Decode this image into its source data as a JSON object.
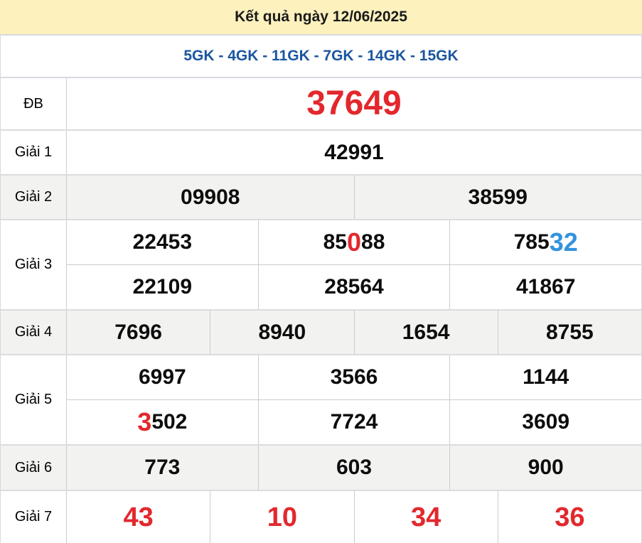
{
  "banner": {
    "title": "Kết quả ngày 12/06/2025"
  },
  "subheader": {
    "stations": "5GK - 4GK - 11GK - 7GK - 14GK - 15GK"
  },
  "colors": {
    "banner_bg": "#FDF1BE",
    "station_blue": "#1A56A0",
    "highlight_red": "#E2282D",
    "highlight_blue": "#3293DD",
    "alt_row_bg": "#F2F2F0",
    "border": "#CCCCCC"
  },
  "table": {
    "rows": [
      {
        "id": "db",
        "label": "ĐB",
        "alt": false,
        "lines": [
          [
            {
              "parts": [
                {
                  "text": "37649",
                  "color": "red"
                }
              ]
            }
          ]
        ]
      },
      {
        "id": "g1",
        "label": "Giải 1",
        "alt": false,
        "lines": [
          [
            {
              "parts": [
                {
                  "text": "42991",
                  "color": "black"
                }
              ]
            }
          ]
        ]
      },
      {
        "id": "g2",
        "label": "Giải 2",
        "alt": true,
        "lines": [
          [
            {
              "parts": [
                {
                  "text": "09908",
                  "color": "black"
                }
              ]
            },
            {
              "parts": [
                {
                  "text": "38599",
                  "color": "black"
                }
              ]
            }
          ]
        ]
      },
      {
        "id": "g3",
        "label": "Giải 3",
        "alt": false,
        "lines": [
          [
            {
              "parts": [
                {
                  "text": "22453",
                  "color": "black"
                }
              ]
            },
            {
              "parts": [
                {
                  "text": "85",
                  "color": "black"
                },
                {
                  "text": "0",
                  "color": "red"
                },
                {
                  "text": "88",
                  "color": "black"
                }
              ]
            },
            {
              "parts": [
                {
                  "text": "785",
                  "color": "black"
                },
                {
                  "text": "32",
                  "color": "blue"
                }
              ]
            }
          ],
          [
            {
              "parts": [
                {
                  "text": "22109",
                  "color": "black"
                }
              ]
            },
            {
              "parts": [
                {
                  "text": "28564",
                  "color": "black"
                }
              ]
            },
            {
              "parts": [
                {
                  "text": "41867",
                  "color": "black"
                }
              ]
            }
          ]
        ]
      },
      {
        "id": "g4",
        "label": "Giải 4",
        "alt": true,
        "lines": [
          [
            {
              "parts": [
                {
                  "text": "7696",
                  "color": "black"
                }
              ]
            },
            {
              "parts": [
                {
                  "text": "8940",
                  "color": "black"
                }
              ]
            },
            {
              "parts": [
                {
                  "text": "1654",
                  "color": "black"
                }
              ]
            },
            {
              "parts": [
                {
                  "text": "8755",
                  "color": "black"
                }
              ]
            }
          ]
        ]
      },
      {
        "id": "g5",
        "label": "Giải 5",
        "alt": false,
        "lines": [
          [
            {
              "parts": [
                {
                  "text": "6997",
                  "color": "black"
                }
              ]
            },
            {
              "parts": [
                {
                  "text": "3566",
                  "color": "black"
                }
              ]
            },
            {
              "parts": [
                {
                  "text": "1144",
                  "color": "black"
                }
              ]
            }
          ],
          [
            {
              "parts": [
                {
                  "text": "3",
                  "color": "red"
                },
                {
                  "text": "502",
                  "color": "black"
                }
              ]
            },
            {
              "parts": [
                {
                  "text": "7724",
                  "color": "black"
                }
              ]
            },
            {
              "parts": [
                {
                  "text": "3609",
                  "color": "black"
                }
              ]
            }
          ]
        ]
      },
      {
        "id": "g6",
        "label": "Giải 6",
        "alt": true,
        "lines": [
          [
            {
              "parts": [
                {
                  "text": "773",
                  "color": "black"
                }
              ]
            },
            {
              "parts": [
                {
                  "text": "603",
                  "color": "black"
                }
              ]
            },
            {
              "parts": [
                {
                  "text": "900",
                  "color": "black"
                }
              ]
            }
          ]
        ]
      },
      {
        "id": "g7",
        "label": "Giải 7",
        "alt": false,
        "lines": [
          [
            {
              "parts": [
                {
                  "text": "43",
                  "color": "red"
                }
              ]
            },
            {
              "parts": [
                {
                  "text": "10",
                  "color": "red"
                }
              ]
            },
            {
              "parts": [
                {
                  "text": "34",
                  "color": "red"
                }
              ]
            },
            {
              "parts": [
                {
                  "text": "36",
                  "color": "red"
                }
              ]
            }
          ]
        ]
      }
    ]
  }
}
